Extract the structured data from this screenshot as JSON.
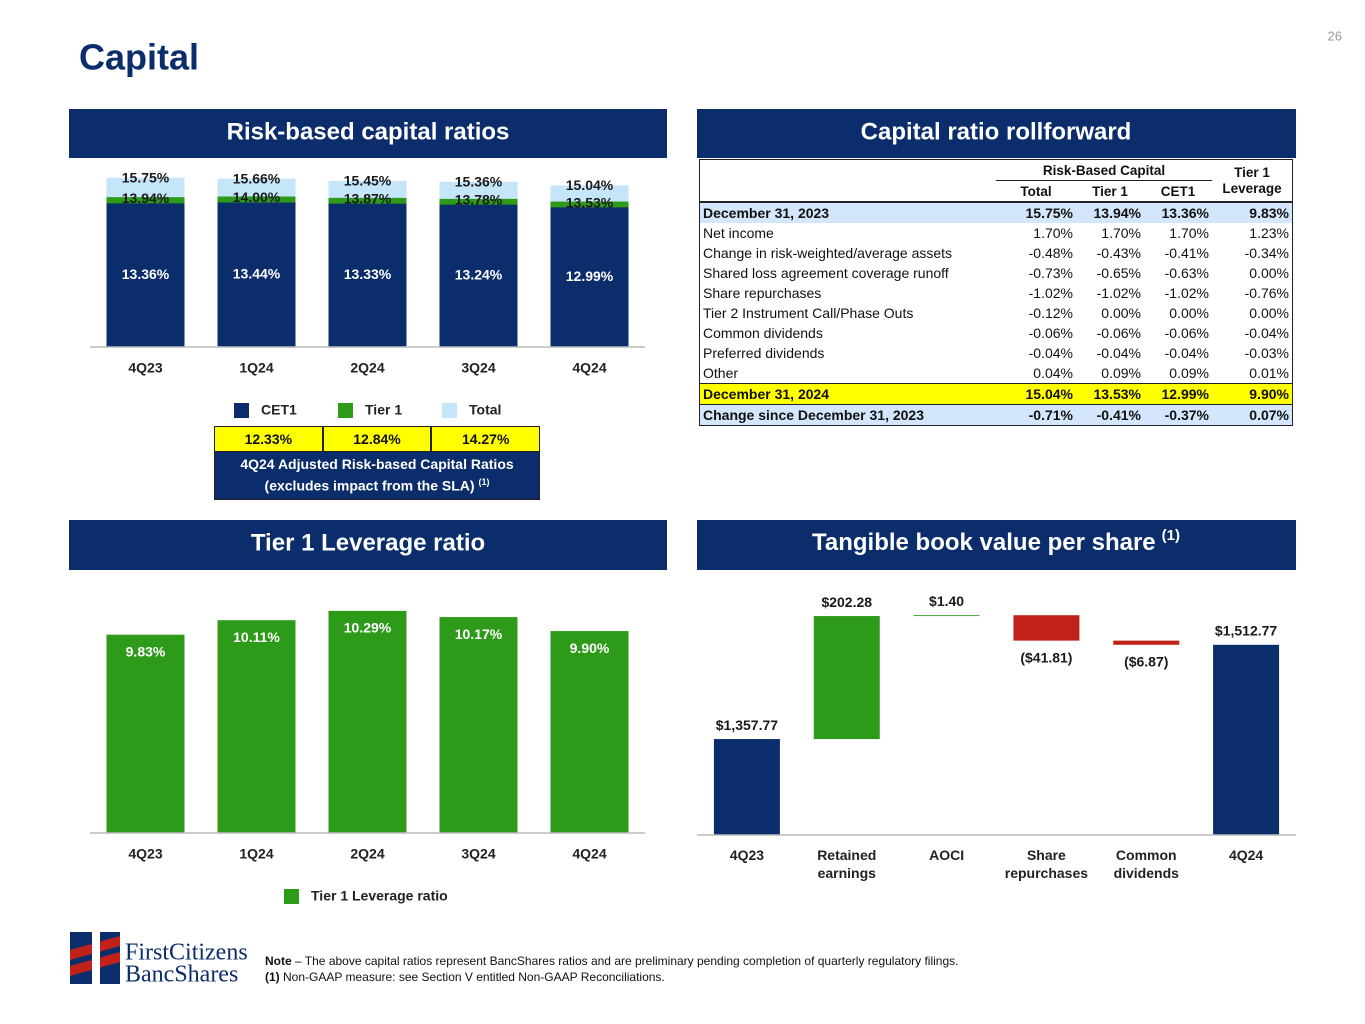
{
  "page_number": "26",
  "title": "Capital",
  "chart_data": [
    {
      "type": "bar",
      "title": "Risk-based capital ratios",
      "categories": [
        "4Q23",
        "1Q24",
        "2Q24",
        "3Q24",
        "4Q24"
      ],
      "series": [
        {
          "name": "CET1",
          "color": "#0b2d6b",
          "values": [
            13.36,
            13.44,
            13.33,
            13.24,
            12.99
          ],
          "value_labels": [
            "13.36%",
            "13.44%",
            "13.33%",
            "13.24%",
            "12.99%"
          ]
        },
        {
          "name": "Tier 1",
          "color": "#2e9a1a",
          "values": [
            13.94,
            14.0,
            13.87,
            13.78,
            13.53
          ],
          "value_labels": [
            "13.94%",
            "14.00%",
            "13.87%",
            "13.78%",
            "13.53%"
          ]
        },
        {
          "name": "Total",
          "color": "#c5e5f8",
          "values": [
            15.75,
            15.66,
            15.45,
            15.36,
            15.04
          ],
          "value_labels": [
            "15.75%",
            "15.66%",
            "15.45%",
            "15.36%",
            "15.04%"
          ]
        }
      ],
      "overlap": true,
      "ylim": [
        0,
        16
      ]
    },
    {
      "type": "bar",
      "title": "Tier 1 Leverage ratio",
      "categories": [
        "4Q23",
        "1Q24",
        "2Q24",
        "3Q24",
        "4Q24"
      ],
      "series": [
        {
          "name": "Tier 1 Leverage ratio",
          "color": "#2e9a1a",
          "values": [
            9.83,
            10.11,
            10.29,
            10.17,
            9.9
          ],
          "value_labels": [
            "9.83%",
            "10.11%",
            "10.29%",
            "10.17%",
            "9.90%"
          ]
        }
      ],
      "ylim": [
        6,
        10.5
      ]
    },
    {
      "type": "waterfall",
      "title": "Tangible book value per share",
      "title_note": "(1)",
      "categories": [
        "4Q23",
        "Retained earnings",
        "AOCI",
        "Share repurchases",
        "Common dividends",
        "4Q24"
      ],
      "values": [
        1357.77,
        202.28,
        1.4,
        -41.81,
        -6.87,
        1512.77
      ],
      "value_labels": [
        "$1,357.77",
        "$202.28",
        "$1.40",
        "($41.81)",
        "($6.87)",
        "$1,512.77"
      ],
      "colors": {
        "total": "#0b2d6b",
        "increase": "#2e9a1a",
        "decrease": "#c0221b"
      },
      "ylim": [
        1200,
        1570
      ]
    }
  ],
  "adjusted_ratios": {
    "values": [
      "12.33%",
      "12.84%",
      "14.27%"
    ],
    "caption": "4Q24 Adjusted Risk-based Capital Ratios (excludes impact from the SLA)",
    "caption_note": "(1)"
  },
  "table": {
    "title": "Capital ratio rollforward",
    "group_header": "Risk-Based Capital",
    "last_header": "Tier 1 Leverage",
    "columns": [
      "Total",
      "Tier 1",
      "CET1"
    ],
    "rows": [
      [
        "December 31, 2023",
        "15.75%",
        "13.94%",
        "13.36%",
        "9.83%"
      ],
      [
        "Net income",
        "1.70%",
        "1.70%",
        "1.70%",
        "1.23%"
      ],
      [
        "Change in risk-weighted/average assets",
        "-0.48%",
        "-0.43%",
        "-0.41%",
        "-0.34%"
      ],
      [
        "Shared loss agreement coverage runoff",
        "-0.73%",
        "-0.65%",
        "-0.63%",
        "0.00%"
      ],
      [
        "Share repurchases",
        "-1.02%",
        "-1.02%",
        "-1.02%",
        "-0.76%"
      ],
      [
        "Tier 2 Instrument Call/Phase Outs",
        "-0.12%",
        "0.00%",
        "0.00%",
        "0.00%"
      ],
      [
        "Common dividends",
        "-0.06%",
        "-0.06%",
        "-0.06%",
        "-0.04%"
      ],
      [
        "Preferred dividends",
        "-0.04%",
        "-0.04%",
        "-0.04%",
        "-0.03%"
      ],
      [
        "Other",
        "0.04%",
        "0.09%",
        "0.09%",
        "0.01%"
      ],
      [
        "December 31, 2024",
        "15.04%",
        "13.53%",
        "12.99%",
        "9.90%"
      ],
      [
        "Change since December 31, 2023",
        "-0.71%",
        "-0.41%",
        "-0.37%",
        "0.07%"
      ]
    ]
  },
  "notes": [
    {
      "lead": "Note",
      "text": "– The above capital ratios represent BancShares ratios and are preliminary pending completion of quarterly regulatory filings."
    },
    {
      "lead": "(1)",
      "text": "Non-GAAP measure: see Section V entitled Non-GAAP Reconciliations."
    }
  ],
  "logo": [
    "FirstCitizens",
    "BancShares"
  ]
}
